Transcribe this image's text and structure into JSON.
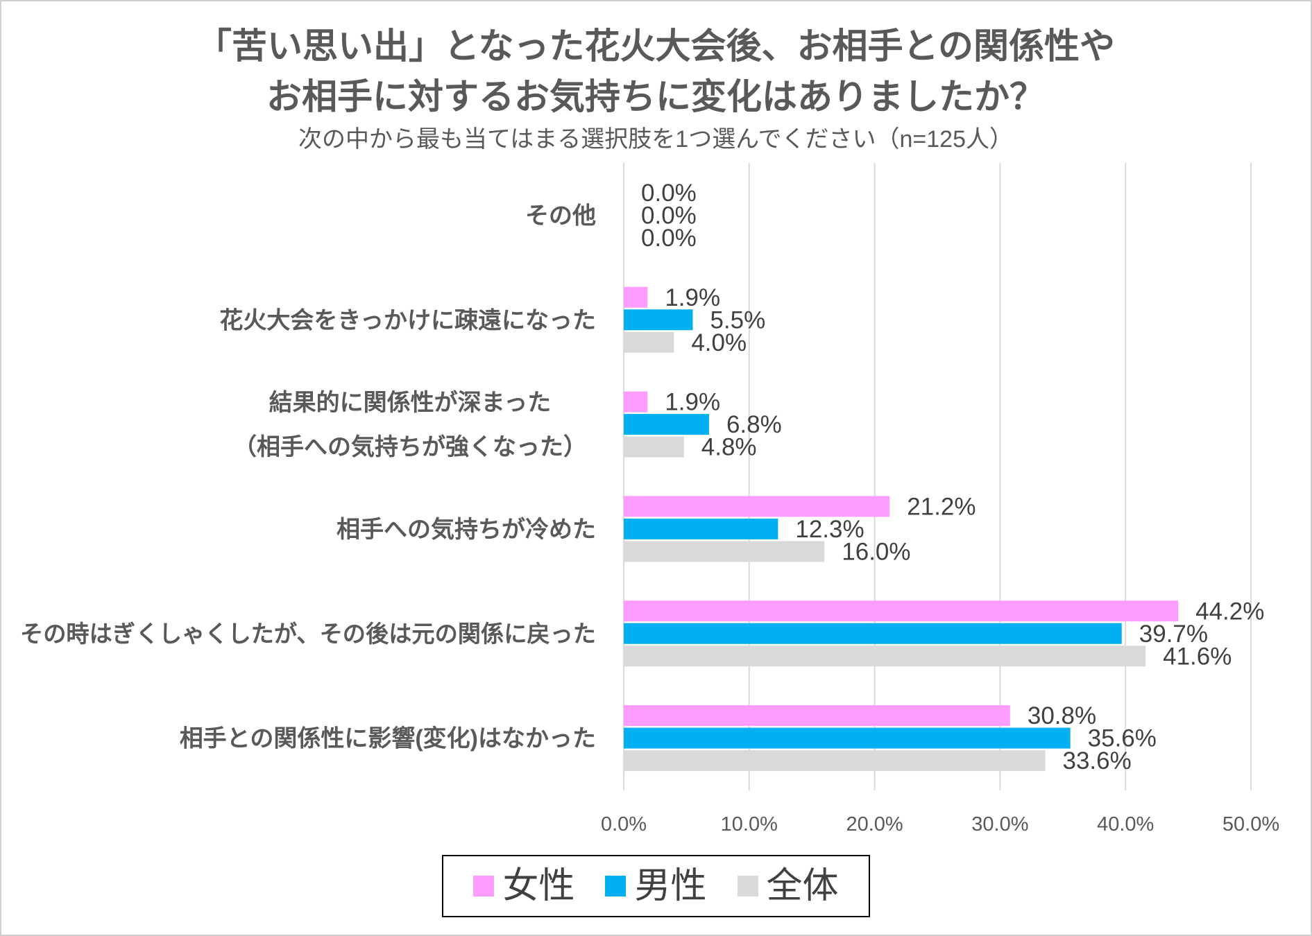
{
  "chart_data": {
    "type": "bar",
    "title_lines": [
      "「苦い思い出」となった花火大会後、お相手との関係性や",
      "お相手に対するお気持ちに変化はありましたか？"
    ],
    "subtitle": "次の中から最も当てはまる選択肢を1つ選んでください（n=125人）",
    "categories": [
      [
        "その他"
      ],
      [
        "花火大会をきっかけに疎遠になった"
      ],
      [
        "結果的に関係性が深まった",
        "（相手への気持ちが強くなった）"
      ],
      [
        "相手への気持ちが冷めた"
      ],
      [
        "その時はぎくしゃくしたが、その後は元の関係に戻った"
      ],
      [
        "相手との関係性に影響(変化)はなかった"
      ]
    ],
    "series": [
      {
        "name": "女性",
        "color": "#FF9CFF",
        "values": [
          0.0,
          1.9,
          1.9,
          21.2,
          44.2,
          30.8
        ]
      },
      {
        "name": "男性",
        "color": "#00B0F0",
        "values": [
          0.0,
          5.5,
          6.8,
          12.3,
          39.7,
          35.6
        ]
      },
      {
        "name": "全体",
        "color": "#D9D9D9",
        "values": [
          0.0,
          4.0,
          4.8,
          16.0,
          41.6,
          33.6
        ]
      }
    ],
    "xlim": [
      0,
      50
    ],
    "ticks": [
      0,
      10,
      20,
      30,
      40,
      50
    ],
    "value_suffix": "%",
    "xlabel": "",
    "ylabel": "",
    "grid": true,
    "legend_position": "bottom"
  }
}
